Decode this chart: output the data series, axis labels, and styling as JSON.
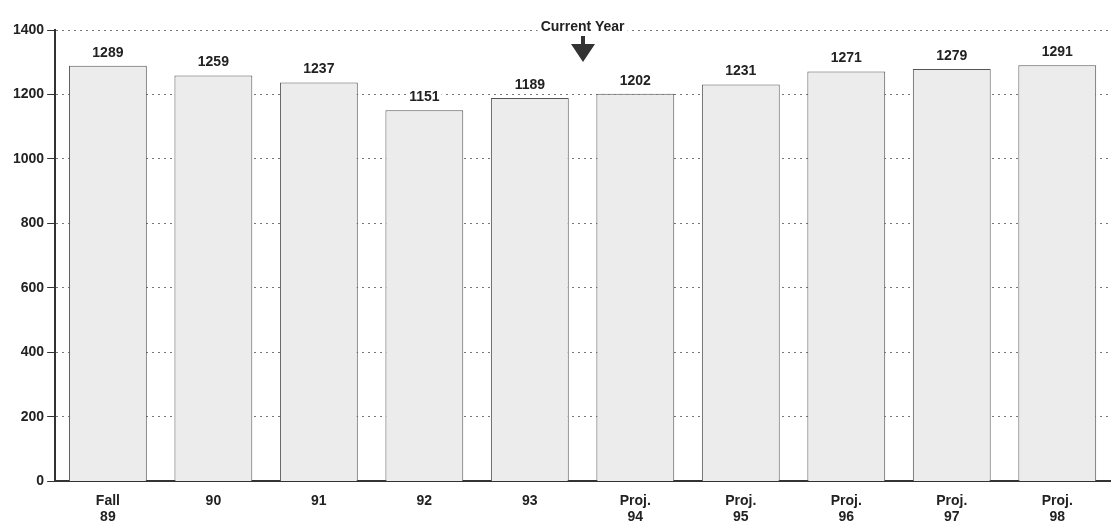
{
  "chart_data": {
    "type": "bar",
    "categories": [
      "Fall 89",
      "90",
      "91",
      "92",
      "93",
      "Proj. 94",
      "Proj. 95",
      "Proj. 96",
      "Proj. 97",
      "Proj. 98"
    ],
    "values": [
      1289,
      1259,
      1237,
      1151,
      1189,
      1202,
      1231,
      1271,
      1279,
      1291
    ],
    "color": "#ececec",
    "ylim": [
      0,
      1400
    ],
    "yticks": [
      0,
      200,
      400,
      600,
      800,
      1000,
      1200,
      1400
    ],
    "grid": "y",
    "data_labels": true,
    "annotations": [
      "Current Year"
    ]
  }
}
